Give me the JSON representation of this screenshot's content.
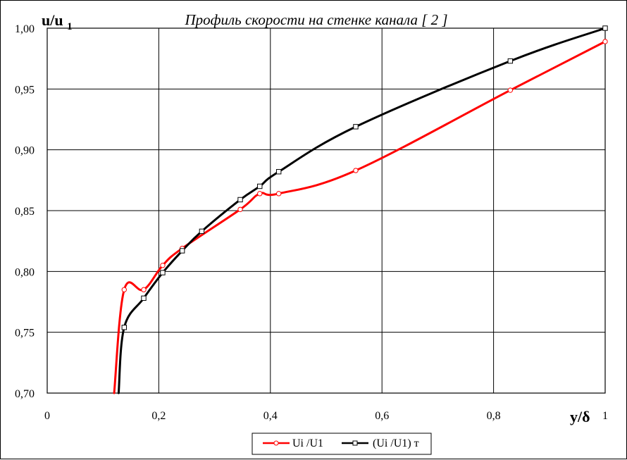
{
  "chart_data": {
    "type": "line",
    "title": "Профиль скорости на стенке канала [ 2 ]",
    "ylabel_main": "u/u",
    "ylabel_sub": "1",
    "xlabel": "y/δ",
    "xlim": [
      0,
      1
    ],
    "ylim": [
      0.7,
      1.0
    ],
    "x_ticks": [
      "0",
      "0,2",
      "0,4",
      "0,6",
      "0,8",
      "1"
    ],
    "y_ticks": [
      "0,70",
      "0,75",
      "0,80",
      "0,85",
      "0,90",
      "0,95",
      "1,00"
    ],
    "grid": true,
    "legend_position": "bottom",
    "series": [
      {
        "name": "Ui /U1",
        "color": "#ff0000",
        "marker": "circle",
        "x": [
          0.138,
          0.173,
          0.207,
          0.242,
          0.346,
          0.381,
          0.415,
          0.553,
          0.83,
          1.0
        ],
        "y": [
          0.785,
          0.785,
          0.805,
          0.819,
          0.851,
          0.864,
          0.864,
          0.883,
          0.949,
          0.989
        ],
        "line_start": {
          "x": 0.12,
          "y": 0.7
        }
      },
      {
        "name": "(Ui /U1) т",
        "color": "#000000",
        "marker": "square",
        "x": [
          0.138,
          0.173,
          0.207,
          0.242,
          0.277,
          0.346,
          0.381,
          0.415,
          0.553,
          0.83,
          1.0
        ],
        "y": [
          0.754,
          0.778,
          0.799,
          0.817,
          0.833,
          0.859,
          0.87,
          0.882,
          0.919,
          0.973,
          1.0
        ],
        "line_start": {
          "x": 0.128,
          "y": 0.7
        }
      }
    ]
  }
}
